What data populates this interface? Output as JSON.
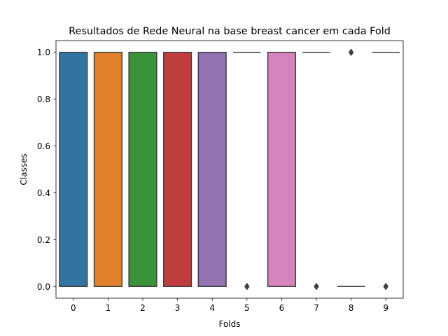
{
  "chart_data": {
    "type": "box",
    "title": "Resultados de Rede Neural na base breast cancer em cada Fold",
    "xlabel": "Folds",
    "ylabel": "Classes",
    "categories": [
      "0",
      "1",
      "2",
      "3",
      "4",
      "5",
      "6",
      "7",
      "8",
      "9"
    ],
    "ylim": [
      -0.05,
      1.05
    ],
    "yticks": [
      "0.0",
      "0.2",
      "0.4",
      "0.6",
      "0.8",
      "1.0"
    ],
    "grid": false,
    "boxes": [
      {
        "fold": "0",
        "q1": 0,
        "median": 1,
        "q3": 1,
        "whisker_low": 0,
        "whisker_high": 1,
        "outliers": [],
        "color": "#3274a1"
      },
      {
        "fold": "1",
        "q1": 0,
        "median": 1,
        "q3": 1,
        "whisker_low": 0,
        "whisker_high": 1,
        "outliers": [],
        "color": "#e1812c"
      },
      {
        "fold": "2",
        "q1": 0,
        "median": 1,
        "q3": 1,
        "whisker_low": 0,
        "whisker_high": 1,
        "outliers": [],
        "color": "#3a923a"
      },
      {
        "fold": "3",
        "q1": 0,
        "median": 1,
        "q3": 1,
        "whisker_low": 0,
        "whisker_high": 1,
        "outliers": [],
        "color": "#c03d3e"
      },
      {
        "fold": "4",
        "q1": 0,
        "median": 1,
        "q3": 1,
        "whisker_low": 0,
        "whisker_high": 1,
        "outliers": [],
        "color": "#9372b2"
      },
      {
        "fold": "5",
        "q1": 1,
        "median": 1,
        "q3": 1,
        "whisker_low": 1,
        "whisker_high": 1,
        "outliers": [
          0
        ],
        "color": "#845b53"
      },
      {
        "fold": "6",
        "q1": 0,
        "median": 1,
        "q3": 1,
        "whisker_low": 0,
        "whisker_high": 1,
        "outliers": [],
        "color": "#d684bd"
      },
      {
        "fold": "7",
        "q1": 1,
        "median": 1,
        "q3": 1,
        "whisker_low": 1,
        "whisker_high": 1,
        "outliers": [
          0
        ],
        "color": "#7f7f7f"
      },
      {
        "fold": "8",
        "q1": 0,
        "median": 0,
        "q3": 0,
        "whisker_low": 0,
        "whisker_high": 0,
        "outliers": [
          1
        ],
        "color": "#a9aa35"
      },
      {
        "fold": "9",
        "q1": 1,
        "median": 1,
        "q3": 1,
        "whisker_low": 1,
        "whisker_high": 1,
        "outliers": [
          0
        ],
        "color": "#2ed0e1"
      }
    ],
    "line_color": "#3f3f3f"
  }
}
